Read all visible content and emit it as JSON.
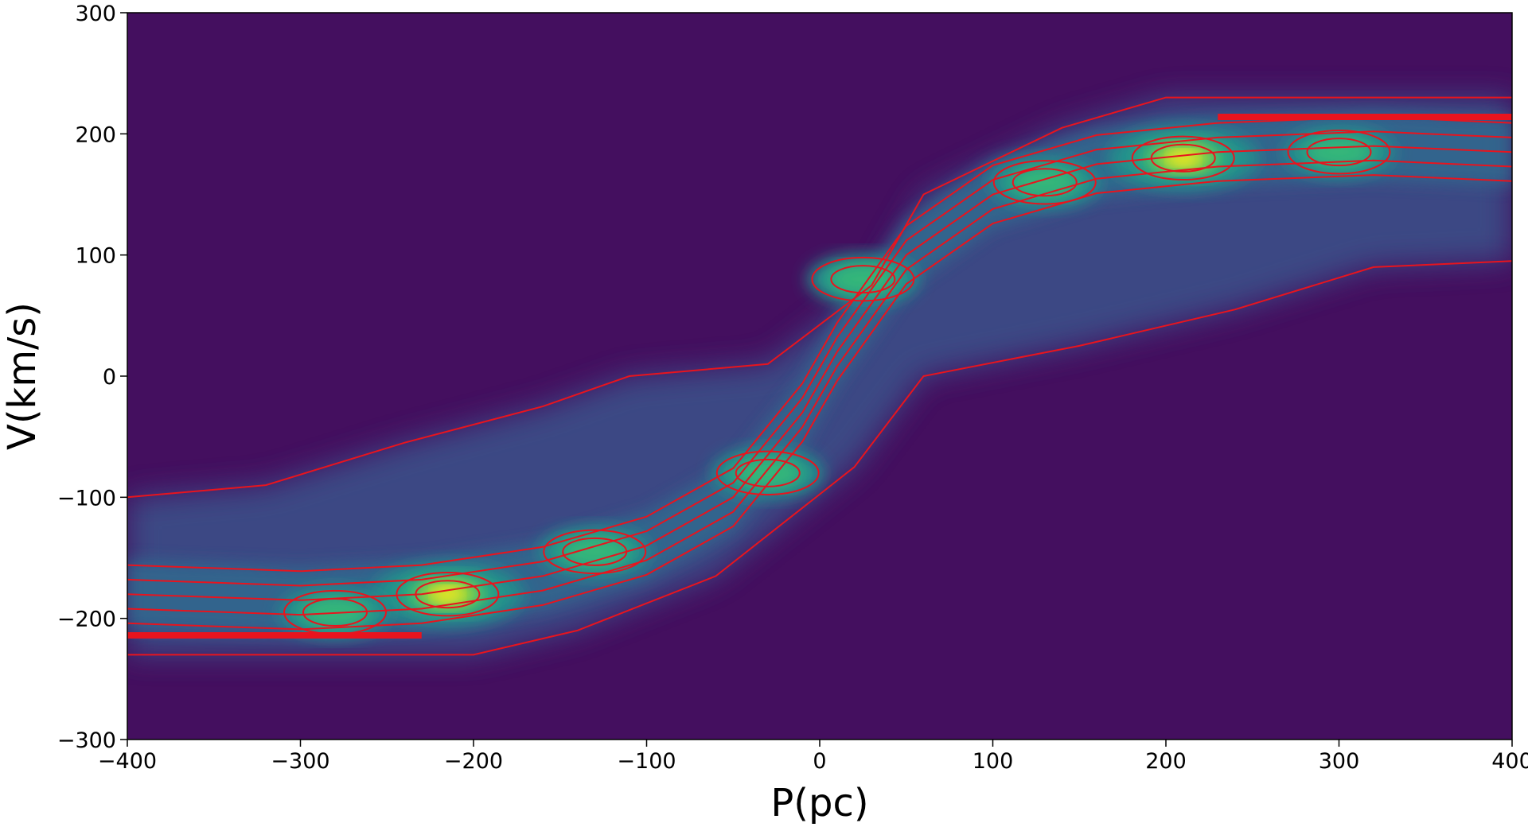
{
  "chart_data": {
    "type": "heatmap",
    "title": "",
    "xlabel": "P(pc)",
    "ylabel": "V(km/s)",
    "xlim": [
      -400,
      400
    ],
    "ylim": [
      -300,
      300
    ],
    "xticks": [
      -400,
      -300,
      -200,
      -100,
      0,
      100,
      200,
      300,
      400
    ],
    "xtick_labels": [
      "−400",
      "−300",
      "−200",
      "−100",
      "0",
      "100",
      "200",
      "300",
      "400"
    ],
    "yticks": [
      -300,
      -200,
      -100,
      0,
      100,
      200,
      300
    ],
    "ytick_labels": [
      "−300",
      "−200",
      "−100",
      "0",
      "100",
      "200",
      "300"
    ],
    "grid": false,
    "colormap": "viridis",
    "background_color": "#440f5f",
    "contour_color": "#e8141e",
    "filled_density_peaks": [
      {
        "x": -215,
        "y": -180,
        "level": 1.0
      },
      {
        "x": -280,
        "y": -195,
        "level": 0.55
      },
      {
        "x": -130,
        "y": -145,
        "level": 0.6
      },
      {
        "x": -30,
        "y": -80,
        "level": 0.55
      },
      {
        "x": 25,
        "y": 80,
        "level": 0.55
      },
      {
        "x": 130,
        "y": 160,
        "level": 0.55
      },
      {
        "x": 210,
        "y": 180,
        "level": 1.0
      },
      {
        "x": 300,
        "y": 185,
        "level": 0.55
      }
    ],
    "envelope_center": [
      {
        "x": -400,
        "y": -180
      },
      {
        "x": -300,
        "y": -185
      },
      {
        "x": -230,
        "y": -180
      },
      {
        "x": -160,
        "y": -165
      },
      {
        "x": -100,
        "y": -140
      },
      {
        "x": -50,
        "y": -100
      },
      {
        "x": -10,
        "y": -30
      },
      {
        "x": 10,
        "y": 20
      },
      {
        "x": 50,
        "y": 100
      },
      {
        "x": 100,
        "y": 150
      },
      {
        "x": 160,
        "y": 175
      },
      {
        "x": 230,
        "y": 185
      },
      {
        "x": 320,
        "y": 190
      },
      {
        "x": 400,
        "y": 185
      }
    ],
    "outer_contour_upper": [
      {
        "x": -400,
        "y": -100
      },
      {
        "x": -320,
        "y": -90
      },
      {
        "x": -240,
        "y": -55
      },
      {
        "x": -160,
        "y": -25
      },
      {
        "x": -110,
        "y": 0
      },
      {
        "x": -30,
        "y": 10
      },
      {
        "x": 30,
        "y": 75
      },
      {
        "x": 60,
        "y": 150
      },
      {
        "x": 140,
        "y": 205
      },
      {
        "x": 200,
        "y": 230
      },
      {
        "x": 400,
        "y": 230
      }
    ],
    "outer_contour_lower": [
      {
        "x": -400,
        "y": -230
      },
      {
        "x": -200,
        "y": -230
      },
      {
        "x": -140,
        "y": -210
      },
      {
        "x": -60,
        "y": -165
      },
      {
        "x": 20,
        "y": -75
      },
      {
        "x": 60,
        "y": 0
      },
      {
        "x": 150,
        "y": 25
      },
      {
        "x": 240,
        "y": 55
      },
      {
        "x": 320,
        "y": 90
      },
      {
        "x": 400,
        "y": 95
      }
    ],
    "ridge_value_line_upper": {
      "x": [
        230,
        400
      ],
      "y": 214
    },
    "ridge_value_line_lower": {
      "x": [
        -400,
        -230
      ],
      "y": -214
    }
  }
}
